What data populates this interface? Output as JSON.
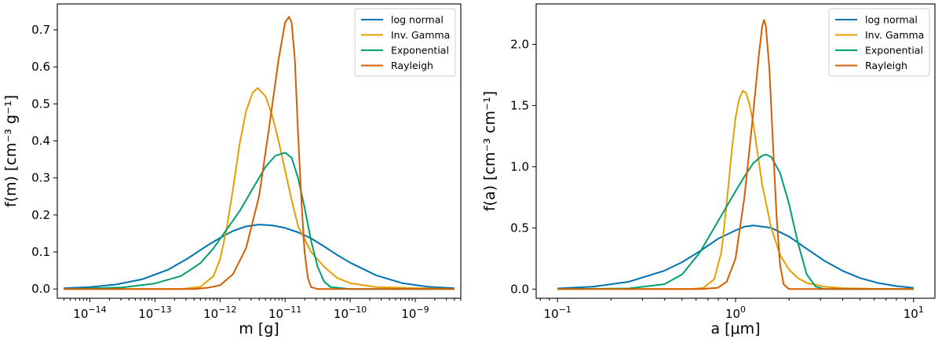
{
  "chart_data": [
    {
      "type": "line",
      "x_scale": "log",
      "xlim_log10": [
        -14.5,
        -8.3
      ],
      "ylim": [
        -0.025,
        0.77
      ],
      "xlabel_text": "m [g]",
      "ylabel_text": "f(m) [cm⁻³ g⁻¹]",
      "xticks": [
        {
          "label_base": "10",
          "label_exp": "−14",
          "log10": -14
        },
        {
          "label_base": "10",
          "label_exp": "−13",
          "log10": -13
        },
        {
          "label_base": "10",
          "label_exp": "−12",
          "log10": -12
        },
        {
          "label_base": "10",
          "label_exp": "−11",
          "log10": -11
        },
        {
          "label_base": "10",
          "label_exp": "−10",
          "log10": -10
        },
        {
          "label_base": "10",
          "label_exp": "−9",
          "log10": -9
        }
      ],
      "yticks": [
        {
          "label": "0.0",
          "value": 0.0
        },
        {
          "label": "0.1",
          "value": 0.1
        },
        {
          "label": "0.2",
          "value": 0.2
        },
        {
          "label": "0.3",
          "value": 0.3
        },
        {
          "label": "0.4",
          "value": 0.4
        },
        {
          "label": "0.5",
          "value": 0.5
        },
        {
          "label": "0.6",
          "value": 0.6
        },
        {
          "label": "0.7",
          "value": 0.7
        }
      ],
      "legend_position": "top-right",
      "series": [
        {
          "name": "log normal",
          "color": "#0072b2",
          "points": [
            [
              -14.4,
              0.002
            ],
            [
              -14.0,
              0.005
            ],
            [
              -13.6,
              0.012
            ],
            [
              -13.2,
              0.026
            ],
            [
              -12.8,
              0.052
            ],
            [
              -12.5,
              0.082
            ],
            [
              -12.2,
              0.117
            ],
            [
              -12.0,
              0.138
            ],
            [
              -11.8,
              0.157
            ],
            [
              -11.6,
              0.169
            ],
            [
              -11.4,
              0.174
            ],
            [
              -11.2,
              0.172
            ],
            [
              -11.0,
              0.165
            ],
            [
              -10.8,
              0.153
            ],
            [
              -10.6,
              0.137
            ],
            [
              -10.4,
              0.115
            ],
            [
              -10.2,
              0.092
            ],
            [
              -10.0,
              0.071
            ],
            [
              -9.6,
              0.037
            ],
            [
              -9.2,
              0.016
            ],
            [
              -8.8,
              0.006
            ],
            [
              -8.4,
              0.002
            ]
          ]
        },
        {
          "name": "Inv. Gamma",
          "color": "#e69f00",
          "points": [
            [
              -14.4,
              0.0
            ],
            [
              -12.6,
              0.0
            ],
            [
              -12.3,
              0.006
            ],
            [
              -12.1,
              0.035
            ],
            [
              -12.0,
              0.08
            ],
            [
              -11.9,
              0.16
            ],
            [
              -11.8,
              0.27
            ],
            [
              -11.7,
              0.39
            ],
            [
              -11.6,
              0.48
            ],
            [
              -11.5,
              0.53
            ],
            [
              -11.42,
              0.543
            ],
            [
              -11.3,
              0.52
            ],
            [
              -11.2,
              0.47
            ],
            [
              -11.1,
              0.4
            ],
            [
              -11.0,
              0.32
            ],
            [
              -10.9,
              0.24
            ],
            [
              -10.8,
              0.17
            ],
            [
              -10.6,
              0.1
            ],
            [
              -10.4,
              0.06
            ],
            [
              -10.2,
              0.03
            ],
            [
              -10.0,
              0.016
            ],
            [
              -9.6,
              0.005
            ],
            [
              -8.4,
              0.0
            ]
          ]
        },
        {
          "name": "Exponential",
          "color": "#009e73",
          "points": [
            [
              -14.4,
              0.0
            ],
            [
              -13.5,
              0.004
            ],
            [
              -13.0,
              0.015
            ],
            [
              -12.6,
              0.035
            ],
            [
              -12.3,
              0.07
            ],
            [
              -12.1,
              0.11
            ],
            [
              -11.9,
              0.16
            ],
            [
              -11.7,
              0.21
            ],
            [
              -11.5,
              0.27
            ],
            [
              -11.3,
              0.33
            ],
            [
              -11.15,
              0.36
            ],
            [
              -11.0,
              0.368
            ],
            [
              -10.9,
              0.355
            ],
            [
              -10.8,
              0.3
            ],
            [
              -10.7,
              0.22
            ],
            [
              -10.6,
              0.13
            ],
            [
              -10.5,
              0.06
            ],
            [
              -10.4,
              0.02
            ],
            [
              -10.3,
              0.005
            ],
            [
              -10.0,
              0.0
            ],
            [
              -8.4,
              0.0
            ]
          ]
        },
        {
          "name": "Rayleigh",
          "color": "#d55e00",
          "points": [
            [
              -14.4,
              0.0
            ],
            [
              -12.4,
              0.0
            ],
            [
              -12.2,
              0.003
            ],
            [
              -12.0,
              0.01
            ],
            [
              -11.8,
              0.04
            ],
            [
              -11.6,
              0.11
            ],
            [
              -11.4,
              0.25
            ],
            [
              -11.25,
              0.43
            ],
            [
              -11.1,
              0.62
            ],
            [
              -11.0,
              0.72
            ],
            [
              -10.94,
              0.735
            ],
            [
              -10.9,
              0.72
            ],
            [
              -10.85,
              0.62
            ],
            [
              -10.8,
              0.42
            ],
            [
              -10.75,
              0.24
            ],
            [
              -10.7,
              0.1
            ],
            [
              -10.65,
              0.03
            ],
            [
              -10.6,
              0.005
            ],
            [
              -10.5,
              0.0
            ],
            [
              -8.4,
              0.0
            ]
          ]
        }
      ]
    },
    {
      "type": "line",
      "x_scale": "log",
      "xlim_log10": [
        -1.12,
        1.12
      ],
      "ylim": [
        -0.075,
        2.33
      ],
      "xlabel_text": "a [μm]",
      "ylabel_text": "f(a) [cm⁻³ cm⁻¹]",
      "xticks": [
        {
          "label_base": "10",
          "label_exp": "−1",
          "log10": -1
        },
        {
          "label_base": "10",
          "label_exp": "0",
          "log10": 0
        },
        {
          "label_base": "10",
          "label_exp": "1",
          "log10": 1
        }
      ],
      "yticks": [
        {
          "label": "0.0",
          "value": 0.0
        },
        {
          "label": "0.5",
          "value": 0.5
        },
        {
          "label": "1.0",
          "value": 1.0
        },
        {
          "label": "1.5",
          "value": 1.5
        },
        {
          "label": "2.0",
          "value": 2.0
        }
      ],
      "legend_position": "top-right",
      "series": [
        {
          "name": "log normal",
          "color": "#0072b2",
          "points": [
            [
              -1.0,
              0.005
            ],
            [
              -0.8,
              0.02
            ],
            [
              -0.6,
              0.06
            ],
            [
              -0.4,
              0.15
            ],
            [
              -0.3,
              0.22
            ],
            [
              -0.2,
              0.31
            ],
            [
              -0.1,
              0.41
            ],
            [
              0.0,
              0.48
            ],
            [
              0.05,
              0.51
            ],
            [
              0.1,
              0.52
            ],
            [
              0.2,
              0.5
            ],
            [
              0.3,
              0.43
            ],
            [
              0.4,
              0.33
            ],
            [
              0.5,
              0.23
            ],
            [
              0.6,
              0.15
            ],
            [
              0.7,
              0.09
            ],
            [
              0.8,
              0.05
            ],
            [
              0.9,
              0.025
            ],
            [
              1.0,
              0.01
            ]
          ]
        },
        {
          "name": "Inv. Gamma",
          "color": "#e69f00",
          "points": [
            [
              -1.0,
              0.0
            ],
            [
              -0.25,
              0.0
            ],
            [
              -0.18,
              0.01
            ],
            [
              -0.12,
              0.08
            ],
            [
              -0.08,
              0.3
            ],
            [
              -0.05,
              0.7
            ],
            [
              -0.02,
              1.15
            ],
            [
              0.0,
              1.4
            ],
            [
              0.02,
              1.55
            ],
            [
              0.04,
              1.62
            ],
            [
              0.06,
              1.6
            ],
            [
              0.08,
              1.5
            ],
            [
              0.1,
              1.35
            ],
            [
              0.12,
              1.15
            ],
            [
              0.15,
              0.85
            ],
            [
              0.2,
              0.5
            ],
            [
              0.25,
              0.28
            ],
            [
              0.3,
              0.16
            ],
            [
              0.35,
              0.09
            ],
            [
              0.4,
              0.05
            ],
            [
              0.5,
              0.02
            ],
            [
              0.6,
              0.008
            ],
            [
              0.8,
              0.002
            ],
            [
              1.0,
              0.0
            ]
          ]
        },
        {
          "name": "Exponential",
          "color": "#009e73",
          "points": [
            [
              -1.0,
              0.0
            ],
            [
              -0.6,
              0.005
            ],
            [
              -0.4,
              0.04
            ],
            [
              -0.3,
              0.12
            ],
            [
              -0.2,
              0.3
            ],
            [
              -0.1,
              0.55
            ],
            [
              0.0,
              0.8
            ],
            [
              0.05,
              0.92
            ],
            [
              0.1,
              1.03
            ],
            [
              0.15,
              1.09
            ],
            [
              0.17,
              1.1
            ],
            [
              0.2,
              1.08
            ],
            [
              0.25,
              0.95
            ],
            [
              0.3,
              0.7
            ],
            [
              0.35,
              0.38
            ],
            [
              0.4,
              0.12
            ],
            [
              0.45,
              0.02
            ],
            [
              0.5,
              0.0
            ],
            [
              1.0,
              0.0
            ]
          ]
        },
        {
          "name": "Rayleigh",
          "color": "#d55e00",
          "points": [
            [
              -1.0,
              0.0
            ],
            [
              -0.2,
              0.0
            ],
            [
              -0.1,
              0.01
            ],
            [
              -0.05,
              0.06
            ],
            [
              0.0,
              0.25
            ],
            [
              0.05,
              0.75
            ],
            [
              0.1,
              1.45
            ],
            [
              0.13,
              1.9
            ],
            [
              0.15,
              2.15
            ],
            [
              0.16,
              2.2
            ],
            [
              0.17,
              2.15
            ],
            [
              0.19,
              1.8
            ],
            [
              0.21,
              1.2
            ],
            [
              0.23,
              0.6
            ],
            [
              0.25,
              0.2
            ],
            [
              0.27,
              0.04
            ],
            [
              0.3,
              0.0
            ],
            [
              1.0,
              0.0
            ]
          ]
        }
      ]
    }
  ]
}
